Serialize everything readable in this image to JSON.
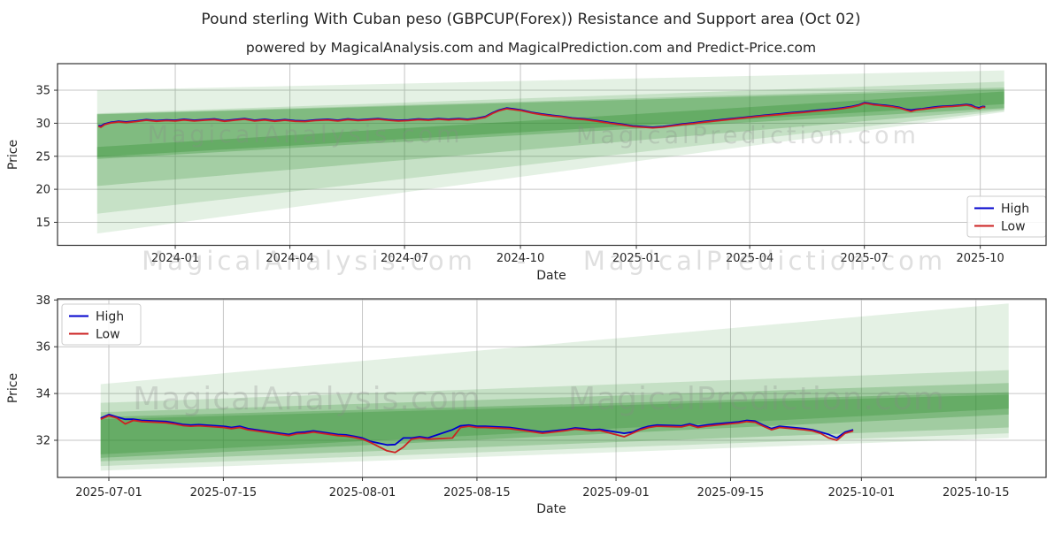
{
  "title": "Pound sterling With Cuban peso (GBPCUP(Forex)) Resistance and Support area (Oct 02)",
  "subtitle": "powered by MagicalAnalysis.com and MagicalPrediction.com and Predict-Price.com",
  "watermark_row": {
    "left": "MagicalAnalysis.com",
    "separator": "-",
    "right": "MagicalPrediction.com"
  },
  "chart_data": [
    {
      "type": "line",
      "name": "overview-daily-2023-11-to-2025-10",
      "xlabel": "Date",
      "ylabel": "Price",
      "x_epoch": "2023-11-01",
      "x_unit": "days since x_epoch",
      "xtick_labels": [
        "2024-01",
        "2024-04",
        "2024-07",
        "2024-10",
        "2025-01",
        "2025-04",
        "2025-07",
        "2025-10"
      ],
      "yticks": [
        15,
        20,
        25,
        30,
        35
      ],
      "ylim": [
        11.5,
        39.0
      ],
      "grid": true,
      "legend_position": "lower right",
      "watermarks": [
        "MagicalAnalysis.com",
        "MagicalPrediction.com"
      ],
      "series": [
        {
          "name": "High",
          "color": "#0000cc"
        },
        {
          "name": "Low",
          "color": "#cc2222"
        }
      ],
      "columns": [
        "day",
        "high",
        "low"
      ],
      "rows": [
        [
          0,
          29.65,
          29.55
        ],
        [
          2,
          29.6,
          29.4
        ],
        [
          5,
          29.9,
          29.8
        ],
        [
          10,
          30.15,
          30.05
        ],
        [
          16,
          30.3,
          30.2
        ],
        [
          22,
          30.2,
          30.1
        ],
        [
          30,
          30.35,
          30.25
        ],
        [
          38,
          30.55,
          30.45
        ],
        [
          46,
          30.4,
          30.3
        ],
        [
          54,
          30.5,
          30.4
        ],
        [
          61,
          30.45,
          30.35
        ],
        [
          68,
          30.6,
          30.5
        ],
        [
          76,
          30.45,
          30.35
        ],
        [
          84,
          30.55,
          30.45
        ],
        [
          92,
          30.65,
          30.55
        ],
        [
          100,
          30.4,
          30.3
        ],
        [
          108,
          30.55,
          30.45
        ],
        [
          116,
          30.7,
          30.6
        ],
        [
          124,
          30.45,
          30.35
        ],
        [
          132,
          30.6,
          30.5
        ],
        [
          140,
          30.4,
          30.3
        ],
        [
          148,
          30.55,
          30.45
        ],
        [
          156,
          30.4,
          30.3
        ],
        [
          164,
          30.35,
          30.25
        ],
        [
          172,
          30.5,
          30.4
        ],
        [
          182,
          30.6,
          30.5
        ],
        [
          190,
          30.45,
          30.35
        ],
        [
          198,
          30.65,
          30.55
        ],
        [
          206,
          30.5,
          30.4
        ],
        [
          214,
          30.6,
          30.5
        ],
        [
          222,
          30.7,
          30.6
        ],
        [
          230,
          30.55,
          30.45
        ],
        [
          238,
          30.45,
          30.35
        ],
        [
          246,
          30.5,
          30.4
        ],
        [
          254,
          30.65,
          30.55
        ],
        [
          262,
          30.55,
          30.45
        ],
        [
          270,
          30.7,
          30.6
        ],
        [
          278,
          30.6,
          30.5
        ],
        [
          286,
          30.7,
          30.6
        ],
        [
          293,
          30.6,
          30.5
        ],
        [
          300,
          30.75,
          30.65
        ],
        [
          307,
          31.0,
          30.9
        ],
        [
          313,
          31.6,
          31.5
        ],
        [
          318,
          32.0,
          31.9
        ],
        [
          324,
          32.3,
          32.2
        ],
        [
          330,
          32.15,
          32.05
        ],
        [
          336,
          32.0,
          31.9
        ],
        [
          344,
          31.65,
          31.55
        ],
        [
          352,
          31.4,
          31.3
        ],
        [
          360,
          31.2,
          31.1
        ],
        [
          368,
          31.05,
          30.95
        ],
        [
          376,
          30.8,
          30.7
        ],
        [
          386,
          30.65,
          30.55
        ],
        [
          396,
          30.4,
          30.3
        ],
        [
          406,
          30.1,
          30.0
        ],
        [
          416,
          29.85,
          29.75
        ],
        [
          424,
          29.6,
          29.5
        ],
        [
          432,
          29.5,
          29.4
        ],
        [
          440,
          29.4,
          29.3
        ],
        [
          448,
          29.5,
          29.4
        ],
        [
          456,
          29.7,
          29.6
        ],
        [
          464,
          29.9,
          29.8
        ],
        [
          472,
          30.05,
          29.95
        ],
        [
          480,
          30.25,
          30.15
        ],
        [
          490,
          30.45,
          30.35
        ],
        [
          500,
          30.65,
          30.55
        ],
        [
          510,
          30.85,
          30.75
        ],
        [
          520,
          31.05,
          30.95
        ],
        [
          530,
          31.25,
          31.15
        ],
        [
          540,
          31.4,
          31.3
        ],
        [
          550,
          31.6,
          31.5
        ],
        [
          560,
          31.75,
          31.65
        ],
        [
          570,
          31.95,
          31.85
        ],
        [
          580,
          32.1,
          32.0
        ],
        [
          590,
          32.3,
          32.2
        ],
        [
          598,
          32.55,
          32.45
        ],
        [
          604,
          32.8,
          32.7
        ],
        [
          608,
          33.1,
          33.0
        ],
        [
          611,
          33.05,
          32.95
        ],
        [
          615,
          32.9,
          32.8
        ],
        [
          620,
          32.8,
          32.7
        ],
        [
          625,
          32.7,
          32.6
        ],
        [
          630,
          32.6,
          32.5
        ],
        [
          636,
          32.4,
          32.3
        ],
        [
          641,
          32.1,
          32.0
        ],
        [
          645,
          32.0,
          31.8
        ],
        [
          649,
          32.1,
          32.0
        ],
        [
          654,
          32.2,
          32.1
        ],
        [
          660,
          32.35,
          32.25
        ],
        [
          666,
          32.5,
          32.4
        ],
        [
          672,
          32.6,
          32.5
        ],
        [
          678,
          32.65,
          32.55
        ],
        [
          684,
          32.75,
          32.65
        ],
        [
          689,
          32.85,
          32.75
        ],
        [
          693,
          32.75,
          32.6
        ],
        [
          696,
          32.45,
          32.35
        ],
        [
          699,
          32.35,
          32.2
        ],
        [
          702,
          32.55,
          32.45
        ],
        [
          704,
          32.5,
          32.4
        ]
      ],
      "support_resistance_bands": {
        "color": "#2d8f2d",
        "x_range_days": [
          -1,
          719
        ],
        "layers": [
          {
            "opacity": 0.13,
            "top": [
              35.0,
              38.0
            ],
            "bottom": [
              13.3,
              31.7
            ]
          },
          {
            "opacity": 0.16,
            "top": [
              31.5,
              36.3
            ],
            "bottom": [
              16.3,
              31.9
            ]
          },
          {
            "opacity": 0.22,
            "top": [
              31.4,
              35.4
            ],
            "bottom": [
              20.5,
              32.1
            ]
          },
          {
            "opacity": 0.3,
            "top": [
              31.35,
              35.1
            ],
            "bottom": [
              24.6,
              32.3
            ]
          },
          {
            "opacity": 0.33,
            "top": [
              26.4,
              34.8
            ],
            "bottom": [
              24.9,
              32.9
            ]
          }
        ]
      }
    },
    {
      "type": "line",
      "name": "zoom-daily-2025-07-to-2025-10",
      "xlabel": "Date",
      "ylabel": "Price",
      "x_epoch": "2025-07-01",
      "x_unit": "days since x_epoch",
      "xtick_labels": [
        "2025-07-01",
        "2025-07-15",
        "2025-08-01",
        "2025-08-15",
        "2025-09-01",
        "2025-09-15",
        "2025-10-01",
        "2025-10-15"
      ],
      "yticks": [
        32,
        34,
        36,
        38
      ],
      "ylim": [
        30.4,
        38.05
      ],
      "grid": true,
      "legend_position": "upper left",
      "watermarks": [
        "MagicalAnalysis.com",
        "MagicalPrediction.com"
      ],
      "series": [
        {
          "name": "High",
          "color": "#0000cc"
        },
        {
          "name": "Low",
          "color": "#cc2222"
        }
      ],
      "columns": [
        "day",
        "high",
        "low"
      ],
      "rows": [
        [
          -1,
          32.95,
          32.9
        ],
        [
          0,
          33.1,
          33.05
        ],
        [
          1,
          33.0,
          32.95
        ],
        [
          2,
          32.9,
          32.7
        ],
        [
          3,
          32.9,
          32.85
        ],
        [
          4,
          32.85,
          32.8
        ],
        [
          7,
          32.8,
          32.75
        ],
        [
          8,
          32.75,
          32.7
        ],
        [
          9,
          32.68,
          32.63
        ],
        [
          10,
          32.65,
          32.6
        ],
        [
          11,
          32.67,
          32.62
        ],
        [
          14,
          32.6,
          32.55
        ],
        [
          15,
          32.55,
          32.5
        ],
        [
          16,
          32.6,
          32.55
        ],
        [
          17,
          32.5,
          32.45
        ],
        [
          18,
          32.45,
          32.4
        ],
        [
          21,
          32.3,
          32.25
        ],
        [
          22,
          32.25,
          32.2
        ],
        [
          23,
          32.33,
          32.28
        ],
        [
          24,
          32.35,
          32.3
        ],
        [
          25,
          32.4,
          32.35
        ],
        [
          28,
          32.25,
          32.2
        ],
        [
          29,
          32.23,
          32.18
        ],
        [
          30,
          32.17,
          32.12
        ],
        [
          31,
          32.1,
          32.05
        ],
        [
          32,
          31.95,
          31.9
        ],
        [
          34,
          31.8,
          31.55
        ],
        [
          35,
          31.82,
          31.48
        ],
        [
          36,
          32.1,
          31.7
        ],
        [
          37,
          32.1,
          32.05
        ],
        [
          38,
          32.15,
          32.1
        ],
        [
          39,
          32.1,
          32.05
        ],
        [
          42,
          32.45,
          32.1
        ],
        [
          43,
          32.62,
          32.55
        ],
        [
          44,
          32.65,
          32.6
        ],
        [
          45,
          32.6,
          32.55
        ],
        [
          46,
          32.6,
          32.55
        ],
        [
          49,
          32.55,
          32.5
        ],
        [
          50,
          32.5,
          32.45
        ],
        [
          51,
          32.45,
          32.4
        ],
        [
          52,
          32.4,
          32.35
        ],
        [
          53,
          32.35,
          32.3
        ],
        [
          56,
          32.47,
          32.42
        ],
        [
          57,
          32.53,
          32.48
        ],
        [
          58,
          32.5,
          32.45
        ],
        [
          59,
          32.45,
          32.4
        ],
        [
          60,
          32.47,
          32.42
        ],
        [
          63,
          32.3,
          32.15
        ],
        [
          64,
          32.35,
          32.3
        ],
        [
          65,
          32.5,
          32.45
        ],
        [
          66,
          32.6,
          32.55
        ],
        [
          67,
          32.65,
          32.6
        ],
        [
          70,
          32.62,
          32.57
        ],
        [
          71,
          32.7,
          32.65
        ],
        [
          72,
          32.6,
          32.55
        ],
        [
          73,
          32.65,
          32.6
        ],
        [
          74,
          32.69,
          32.64
        ],
        [
          77,
          32.79,
          32.74
        ],
        [
          78,
          32.85,
          32.8
        ],
        [
          79,
          32.82,
          32.77
        ],
        [
          80,
          32.65,
          32.6
        ],
        [
          81,
          32.5,
          32.45
        ],
        [
          82,
          32.6,
          32.55
        ],
        [
          85,
          32.5,
          32.45
        ],
        [
          86,
          32.45,
          32.4
        ],
        [
          87,
          32.35,
          32.3
        ],
        [
          88,
          32.25,
          32.1
        ],
        [
          89,
          32.1,
          32.0
        ],
        [
          90,
          32.35,
          32.3
        ],
        [
          91,
          32.45,
          32.4
        ]
      ],
      "support_resistance_bands": {
        "color": "#2d8f2d",
        "x_range_days": [
          -1,
          110
        ],
        "layers": [
          {
            "opacity": 0.13,
            "top": [
              34.4,
              37.85
            ],
            "bottom": [
              30.7,
              32.1
            ]
          },
          {
            "opacity": 0.17,
            "top": [
              33.6,
              35.0
            ],
            "bottom": [
              30.9,
              32.3
            ]
          },
          {
            "opacity": 0.24,
            "top": [
              33.2,
              34.45
            ],
            "bottom": [
              31.1,
              32.55
            ]
          },
          {
            "opacity": 0.3,
            "top": [
              33.0,
              34.05
            ],
            "bottom": [
              31.25,
              33.1
            ]
          },
          {
            "opacity": 0.3,
            "top": [
              32.9,
              33.95
            ],
            "bottom": [
              31.4,
              33.35
            ]
          }
        ]
      }
    }
  ]
}
